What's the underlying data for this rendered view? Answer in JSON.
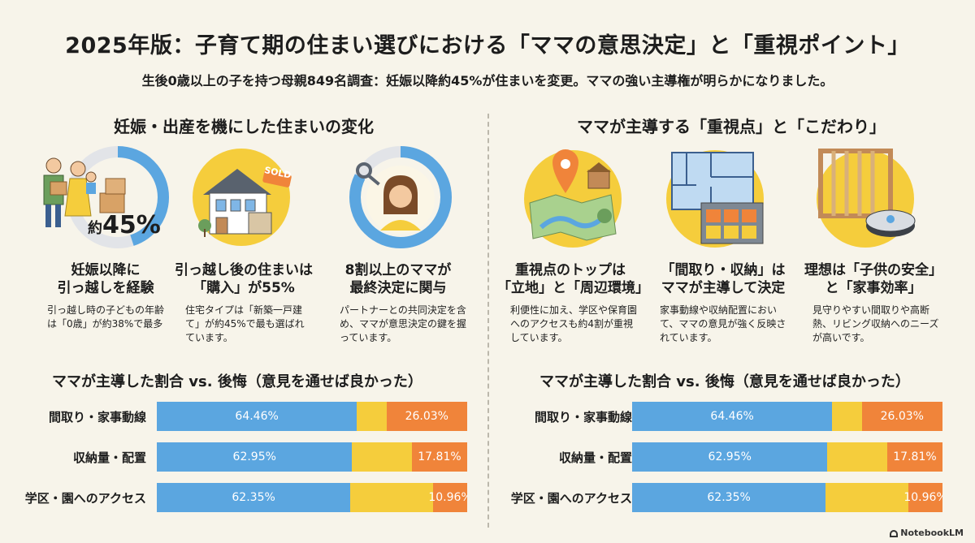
{
  "header": {
    "title": "2025年版：子育て期の住まい選びにおける「ママの意思決定」と「重視ポイント」",
    "subtitle": "生後0歳以上の子を持つ母親849名調査：妊娠以降約45%が住まいを変更。ママの強い主導権が明らかになりました。"
  },
  "left": {
    "section_title": "妊娠・出産を機にした住まいの変化",
    "badge": {
      "prefix": "約",
      "value": "45%"
    },
    "sign_text": "SOLD",
    "cards": [
      {
        "title_line1": "妊娠以降に",
        "title_line2": "引っ越しを経験",
        "desc": "引っ越し時の子どもの年齢は「0歳」が約38%で最多"
      },
      {
        "title_line1": "引っ越し後の住まいは",
        "title_line2": "「購入」が55%",
        "desc": "住宅タイプは「新築一戸建て」が約45%で最も選ばれています。"
      },
      {
        "title_line1": "8割以上のママが",
        "title_line2": "最終決定に関与",
        "desc": "パートナーとの共同決定を含め、ママが意思決定の鍵を握っています。"
      }
    ],
    "chart_title": "ママが主導した割合 vs. 後悔（意見を通せば良かった）"
  },
  "right": {
    "section_title": "ママが主導する「重視点」と「こだわり」",
    "cards": [
      {
        "title_line1": "重視点のトップは",
        "title_line2": "「立地」と「周辺環境」",
        "desc": "利便性に加え、学区や保育園へのアクセスも約4割が重視しています。"
      },
      {
        "title_line1": "「間取り・収納」は",
        "title_line2": "ママが主導して決定",
        "desc": "家事動線や収納配置において、ママの意見が強く反映されています。"
      },
      {
        "title_line1": "理想は「子供の安全」",
        "title_line2": "と「家事効率」",
        "desc": "見守りやすい間取りや高断熱、リビング収納へのニーズが高いです。"
      }
    ],
    "chart_title": "ママが主導した割合 vs. 後悔（意見を通せば良かった）"
  },
  "chart_data": [
    {
      "type": "bar",
      "title": "ママが主導した割合 vs. 後悔（意見を通せば良かった）",
      "categories": [
        "間取り・家事動線",
        "収納量・配置",
        "学区・園へのアクセス"
      ],
      "series": [
        {
          "name": "ママが主導した割合",
          "values": [
            64.46,
            62.95,
            62.35
          ],
          "labels": [
            "64.46%",
            "62.95%",
            "62.35%"
          ]
        },
        {
          "name": "後悔（意見を通せば良かった）",
          "values": [
            26.03,
            17.81,
            10.96
          ],
          "labels": [
            "26.03%",
            "17.81%",
            "10.96%"
          ]
        }
      ]
    },
    {
      "type": "bar",
      "title": "ママが主導した割合 vs. 後悔（意見を通せば良かった）",
      "categories": [
        "間取り・家事動線",
        "収納量・配置",
        "学区・園へのアクセス"
      ],
      "series": [
        {
          "name": "ママが主導した割合",
          "values": [
            64.46,
            62.95,
            62.35
          ],
          "labels": [
            "64.46%",
            "62.95%",
            "62.35%"
          ]
        },
        {
          "name": "後悔（意見を通せば良かった）",
          "values": [
            26.03,
            17.81,
            10.96
          ],
          "labels": [
            "26.03%",
            "17.81%",
            "10.96%"
          ]
        }
      ]
    }
  ],
  "colors": {
    "blue": "#5ba6e0",
    "yellow": "#f5cd3c",
    "orange": "#f0843a",
    "background": "#f7f4ea"
  },
  "footer": {
    "brand": "NotebookLM"
  }
}
